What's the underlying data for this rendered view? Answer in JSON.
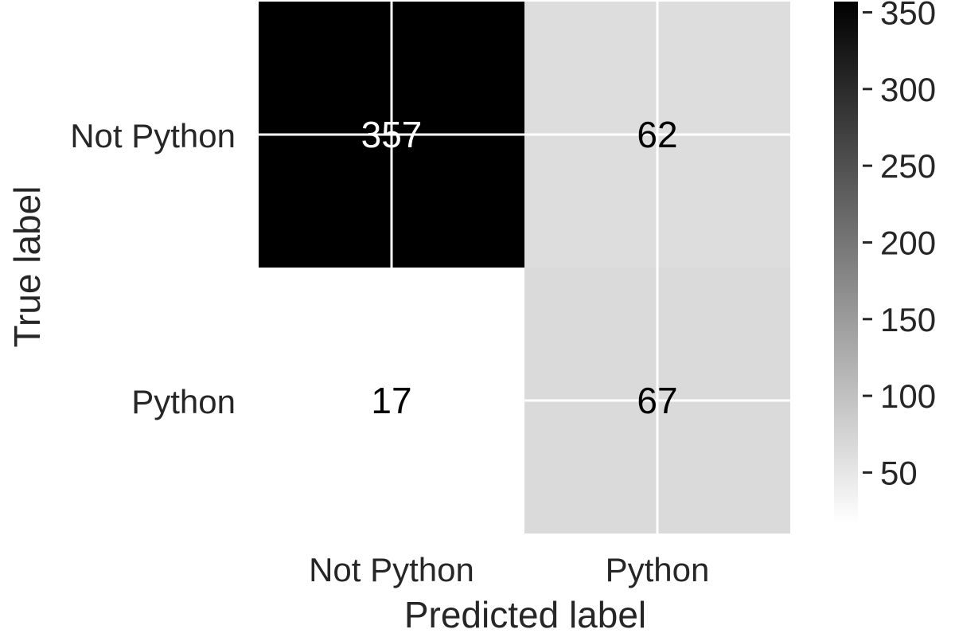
{
  "chart_data": {
    "type": "heatmap",
    "title": "",
    "xlabel": "Predicted label",
    "ylabel": "True label",
    "x_categories": [
      "Not Python",
      "Python"
    ],
    "y_categories": [
      "Not Python",
      "Python"
    ],
    "matrix": [
      [
        357,
        62
      ],
      [
        17,
        67
      ]
    ],
    "colormap": "Greys",
    "colorbar": {
      "min": 17,
      "max": 357,
      "ticks": [
        50,
        100,
        150,
        200,
        250,
        300,
        350
      ]
    },
    "grid": true,
    "grid_color": "#ffffff"
  }
}
